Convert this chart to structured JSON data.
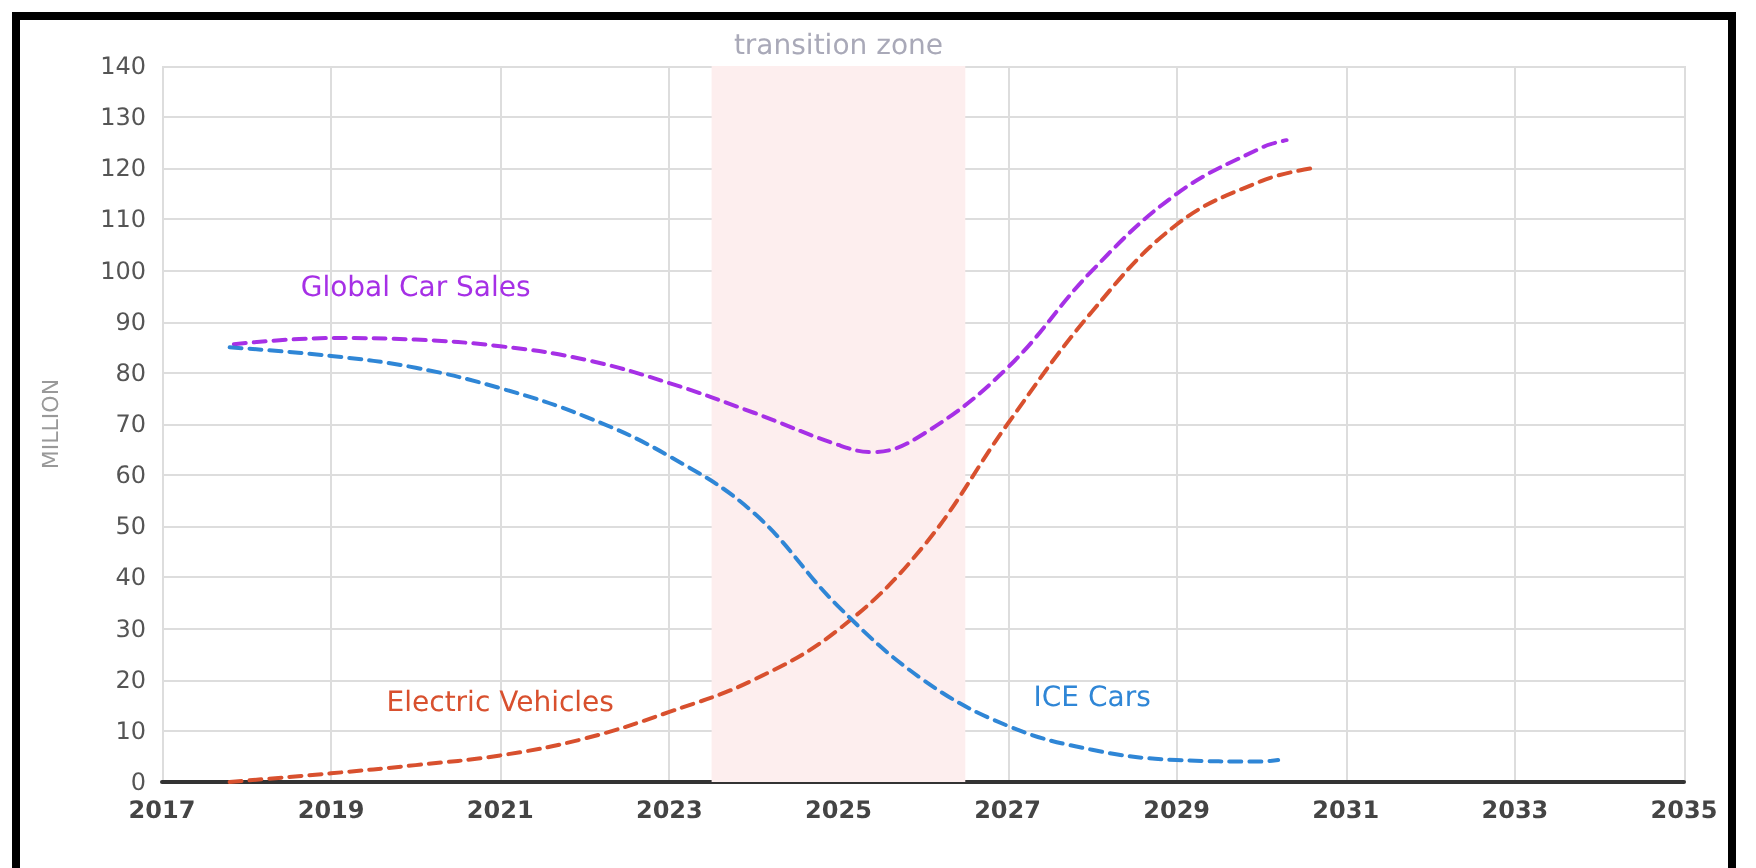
{
  "chart_data": {
    "type": "line",
    "ylabel": "MILLION",
    "xlim": [
      2017,
      2035
    ],
    "xticks": [
      2017,
      2019,
      2021,
      2023,
      2025,
      2027,
      2029,
      2031,
      2033,
      2035
    ],
    "ylim": [
      0,
      140
    ],
    "yticks": [
      0,
      10,
      20,
      30,
      40,
      50,
      60,
      70,
      80,
      90,
      100,
      110,
      120,
      130,
      140
    ],
    "grid": true,
    "legend": false,
    "marker": "none",
    "line_style": "dashed",
    "bands": [
      {
        "axis": "x",
        "from": 2023.5,
        "to": 2026.5,
        "label": "transition zone",
        "color": "#fdeeee"
      }
    ],
    "series": [
      {
        "name": "Global Car Sales",
        "color": "#a630e6",
        "x": [
          2017.85,
          2019,
          2020,
          2021,
          2022,
          2023,
          2024,
          2025,
          2025.4,
          2026,
          2027,
          2028,
          2029,
          2030,
          2030.3
        ],
        "values": [
          85.6,
          86.8,
          86.5,
          85.2,
          82.6,
          78,
          72.2,
          65.9,
          64.5,
          68,
          81,
          100,
          115,
          124,
          125.5
        ]
      },
      {
        "name": "Electric Vehicles",
        "color": "#d8502e",
        "x": [
          2017.8,
          2019,
          2020,
          2021,
          2022,
          2023,
          2024,
          2025,
          2026,
          2027,
          2028,
          2029,
          2030,
          2030.6
        ],
        "values": [
          0,
          1.7,
          3.3,
          5.2,
          8.5,
          13.7,
          20,
          29.8,
          46,
          70,
          92,
          109,
          117.5,
          120
        ]
      },
      {
        "name": "ICE Cars",
        "color": "#2f86d6",
        "x": [
          2017.8,
          2019,
          2020,
          2021,
          2022,
          2023,
          2024,
          2025,
          2026,
          2027,
          2028,
          2029,
          2030,
          2030.2
        ],
        "values": [
          85,
          83.3,
          81,
          77,
          71.5,
          63.7,
          52.6,
          34.3,
          20,
          11,
          6.3,
          4.3,
          4,
          4.3
        ]
      }
    ]
  }
}
